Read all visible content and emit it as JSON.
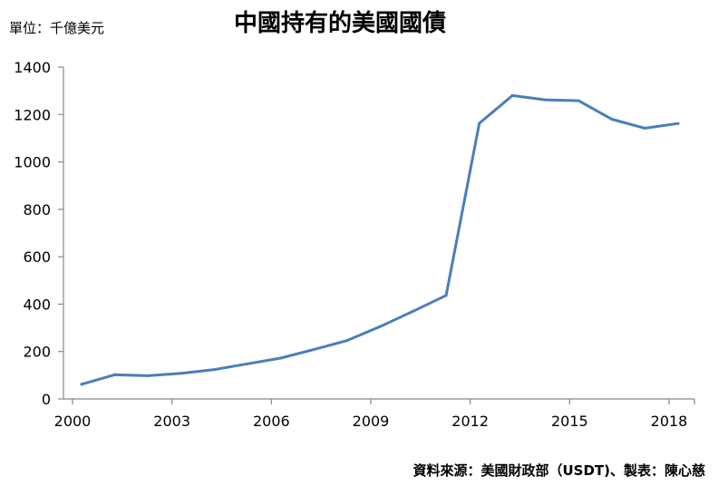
{
  "header": {
    "unit": "單位：千億美元",
    "title": "中國持有的美國國債"
  },
  "footer": {
    "source": "資料來源：美國財政部（USDT)、製表：陳心慈"
  },
  "colors": {
    "line": "#4a7ebb",
    "axis": "#888888"
  },
  "chart_data": {
    "type": "line",
    "title": "中國持有的美國國債",
    "ylabel": "單位：千億美元",
    "xlabel": "",
    "xlim": [
      2000,
      2018
    ],
    "ylim": [
      0,
      1400
    ],
    "x_ticks": [
      "2000",
      "2003",
      "2006",
      "2009",
      "2012",
      "2015",
      "2018"
    ],
    "y_ticks": [
      "0",
      "200",
      "400",
      "600",
      "800",
      "1000",
      "1200",
      "1400"
    ],
    "grid": false,
    "legend": "none",
    "series": [
      {
        "x": [
          2000,
          2001,
          2002,
          2003,
          2004,
          2005,
          2006,
          2007,
          2008,
          2009,
          2010,
          2011,
          2012,
          2013,
          2014,
          2015,
          2016,
          2017,
          2018
        ],
        "values": [
          62,
          102,
          98,
          108,
          124,
          148,
          172,
          208,
          246,
          305,
          370,
          437,
          1163,
          1280,
          1262,
          1258,
          1180,
          1142,
          1162
        ]
      }
    ]
  }
}
